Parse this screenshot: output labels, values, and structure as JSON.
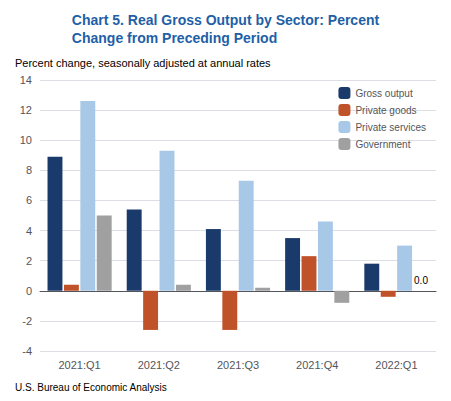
{
  "chart_data": {
    "type": "bar",
    "title": "Chart 5. Real Gross Output by Sector: Percent\nChange from Preceding Period",
    "title_color": "#1f5fa6",
    "subtitle": "Percent change, seasonally adjusted at annual rates",
    "footer": "U.S. Bureau of Economic Analysis",
    "categories": [
      "2021:Q1",
      "2021:Q2",
      "2021:Q3",
      "2021:Q4",
      "2022:Q1"
    ],
    "series": [
      {
        "name": "Gross output",
        "color": "#1a3a6b",
        "values": [
          8.9,
          5.4,
          4.1,
          3.5,
          1.8
        ]
      },
      {
        "name": "Private goods",
        "color": "#c0522a",
        "values": [
          0.4,
          -2.6,
          -2.6,
          2.3,
          -0.4
        ]
      },
      {
        "name": "Private services",
        "color": "#a8c8e8",
        "values": [
          12.6,
          9.3,
          7.3,
          4.6,
          3.0
        ]
      },
      {
        "name": "Government",
        "color": "#a0a0a0",
        "values": [
          5.0,
          0.4,
          0.2,
          -0.8,
          0.0
        ]
      }
    ],
    "annotations": [
      {
        "text": "0.0",
        "series": "Government",
        "category": "2022:Q1",
        "value": 0.0
      }
    ],
    "ylim": [
      -4,
      14
    ],
    "yticks": [
      -4,
      -2,
      0,
      2,
      4,
      6,
      8,
      10,
      12,
      14
    ],
    "grid": true,
    "legend": "upper right"
  }
}
